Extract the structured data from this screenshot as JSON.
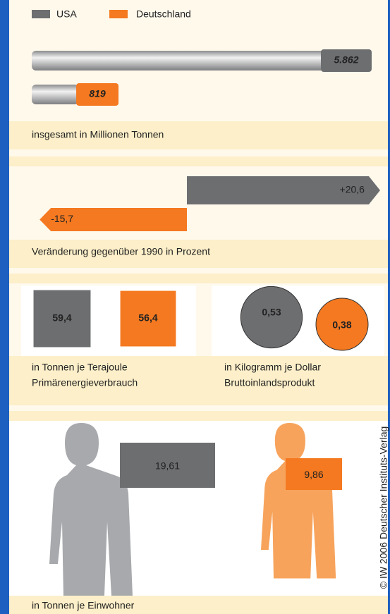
{
  "legend": [
    {
      "name": "USA",
      "color": "#6d6e70"
    },
    {
      "name": "Deutschland",
      "color": "#f47920"
    }
  ],
  "chart_data": [
    {
      "type": "cylinder-bar",
      "values": [
        5862,
        819
      ],
      "value_labels": [
        "5.862",
        "819"
      ],
      "caption": [
        "insgesamt in Millionen Tonnen"
      ]
    },
    {
      "type": "arrow-bar",
      "values": [
        20.6,
        -15.7
      ],
      "value_labels": [
        "+20,6",
        "-15,7"
      ],
      "caption": [
        "Veränderung gegenüber 1990 in Prozent"
      ]
    },
    {
      "type": "square",
      "values": [
        59.4,
        56.4
      ],
      "value_labels": [
        "59,4",
        "56,4"
      ],
      "caption": [
        "in Tonnen je Terajoule",
        "Primärenergieverbrauch"
      ]
    },
    {
      "type": "circle",
      "values": [
        0.53,
        0.38
      ],
      "value_labels": [
        "0,53",
        "0,38"
      ],
      "caption": [
        "in Kilogramm je Dollar",
        "Bruttoinlandsprodukt"
      ]
    },
    {
      "type": "pictogram",
      "values": [
        19.61,
        9.86
      ],
      "value_labels": [
        "19,61",
        "9,86"
      ],
      "caption": [
        "in Tonnen je Einwohner"
      ]
    }
  ],
  "copyright": "© IW 2006 Deutscher Instituts-Verlag"
}
